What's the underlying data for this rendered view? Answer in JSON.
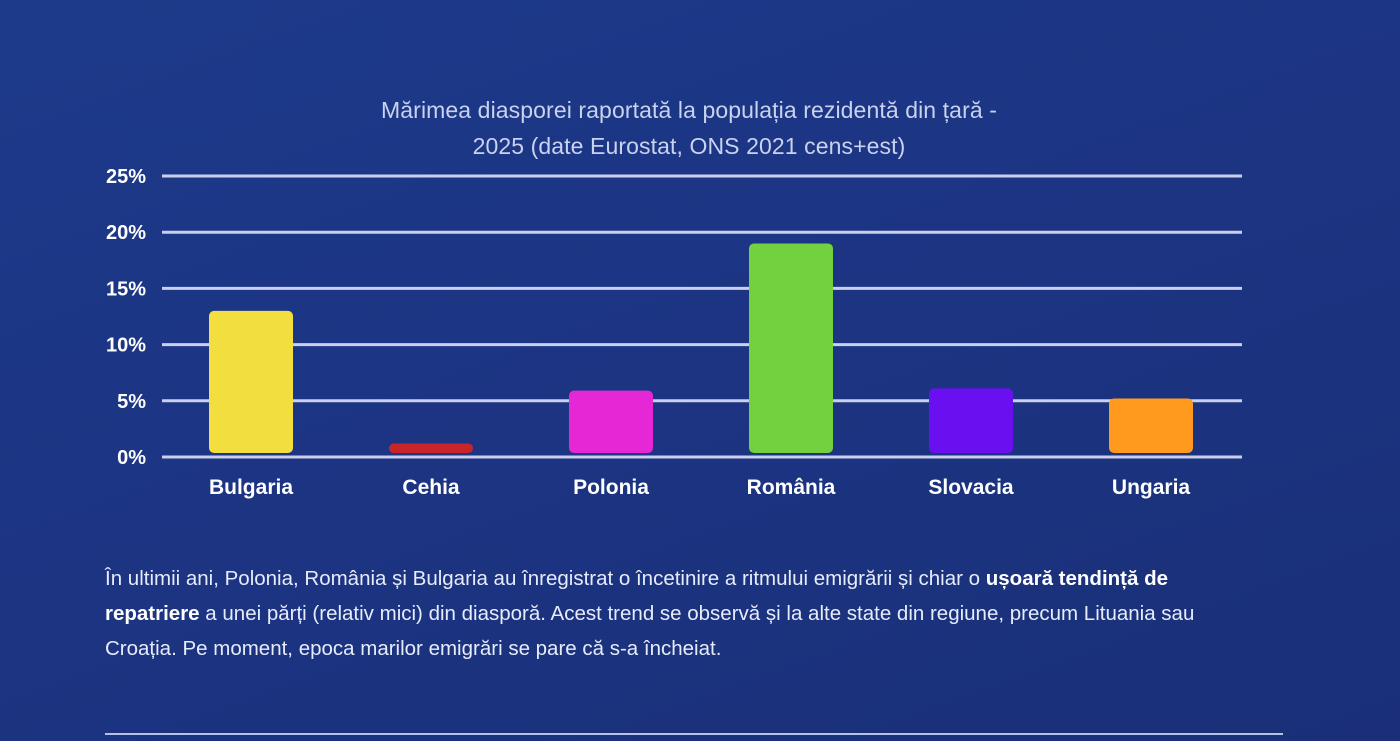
{
  "chart_data": {
    "type": "bar",
    "title_line1": "Mărimea diasporei raportată la populația rezidentă din țară -",
    "title_line2": "2025 (date Eurostat, ONS 2021 cens+est)",
    "categories": [
      "Bulgaria",
      "Cehia",
      "Polonia",
      "România",
      "Slovacia",
      "Ungaria"
    ],
    "values": [
      13,
      1.2,
      5.9,
      19,
      6.1,
      5.2
    ],
    "colors": [
      "#f2df3f",
      "#c8252b",
      "#e627d5",
      "#73d13f",
      "#6a0ff0",
      "#ff9a1f"
    ],
    "y_ticks": [
      "0%",
      "5%",
      "10%",
      "15%",
      "20%",
      "25%"
    ],
    "ylim": [
      0,
      25
    ],
    "grid": true
  },
  "caption": {
    "part1": "În ultimii ani, Polonia, România și Bulgaria au înregistrat o încetinire a ritmului emigrării și chiar o ",
    "bold": "ușoară tendință de repatriere",
    "part2": " a unei părți (relativ mici) din diasporă. Acest trend se observă și la alte state din regiune, precum Lituania sau Croația. Pe moment, epoca marilor emigrări se pare că s-a încheiat."
  }
}
